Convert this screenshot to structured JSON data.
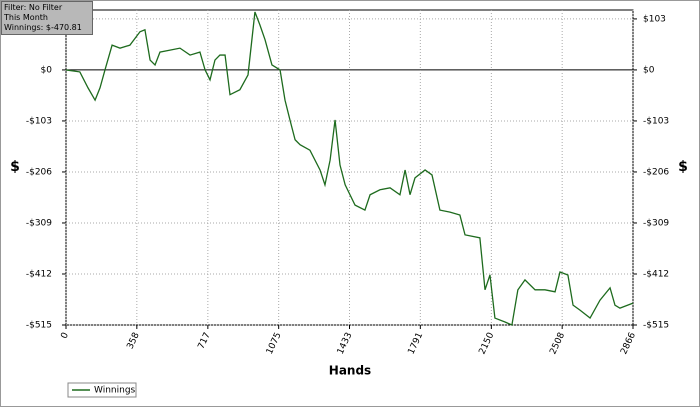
{
  "info": {
    "filter": "Filter: No Filter",
    "period": "This Month",
    "winnings": "Winnings: $-470.81"
  },
  "chart_data": {
    "type": "line",
    "xlabel": "Hands",
    "ylabel": "$",
    "x": [
      0,
      70,
      111,
      147,
      172,
      197,
      233,
      273,
      323,
      374,
      399,
      425,
      450,
      475,
      526,
      576,
      627,
      677,
      703,
      728,
      753,
      778,
      804,
      829,
      879,
      920,
      955,
      980,
      1006,
      1041,
      1082,
      1107,
      1132,
      1158,
      1183,
      1233,
      1284,
      1309,
      1335,
      1360,
      1385,
      1411,
      1461,
      1511,
      1537,
      1587,
      1638,
      1688,
      1714,
      1739,
      1764,
      1815,
      1850,
      1890,
      1941,
      1991,
      2017,
      2092,
      2118,
      2143,
      2168,
      2219,
      2254,
      2284,
      2320,
      2371,
      2421,
      2472,
      2497,
      2537,
      2563,
      2598,
      2649,
      2699,
      2750,
      2775,
      2800,
      2866
    ],
    "series": [
      {
        "name": "Winnings",
        "color": "#1e6b1e",
        "values": [
          0,
          -4,
          -36,
          -61,
          -36,
          0,
          50,
          44,
          50,
          77,
          81,
          20,
          10,
          36,
          40,
          44,
          30,
          36,
          0,
          -20,
          20,
          30,
          30,
          -50,
          -40,
          -10,
          117,
          91,
          61,
          10,
          0,
          -61,
          -101,
          -141,
          -151,
          -162,
          -202,
          -232,
          -182,
          -101,
          -192,
          -232,
          -273,
          -283,
          -252,
          -242,
          -238,
          -252,
          -202,
          -252,
          -218,
          -202,
          -212,
          -283,
          -287,
          -293,
          -333,
          -339,
          -444,
          -414,
          -501,
          -509,
          -515,
          -444,
          -424,
          -444,
          -444,
          -448,
          -408,
          -414,
          -475,
          -485,
          -501,
          -465,
          -440,
          -475,
          -481,
          -470.81
        ]
      }
    ],
    "xlim": [
      0,
      2866
    ],
    "xticks": [
      0,
      358,
      717,
      1075,
      1433,
      1791,
      2150,
      2508,
      2866
    ],
    "ylim": [
      -515,
      121
    ],
    "yticks": [
      {
        "value": 103,
        "label": "$103"
      },
      {
        "value": 0,
        "label": "$0"
      },
      {
        "value": -103,
        "label": "-$103"
      },
      {
        "value": -206,
        "label": "-$206"
      },
      {
        "value": -309,
        "label": "-$309"
      },
      {
        "value": -412,
        "label": "-$412"
      },
      {
        "value": -515,
        "label": "-$515"
      }
    ],
    "grid": true
  }
}
